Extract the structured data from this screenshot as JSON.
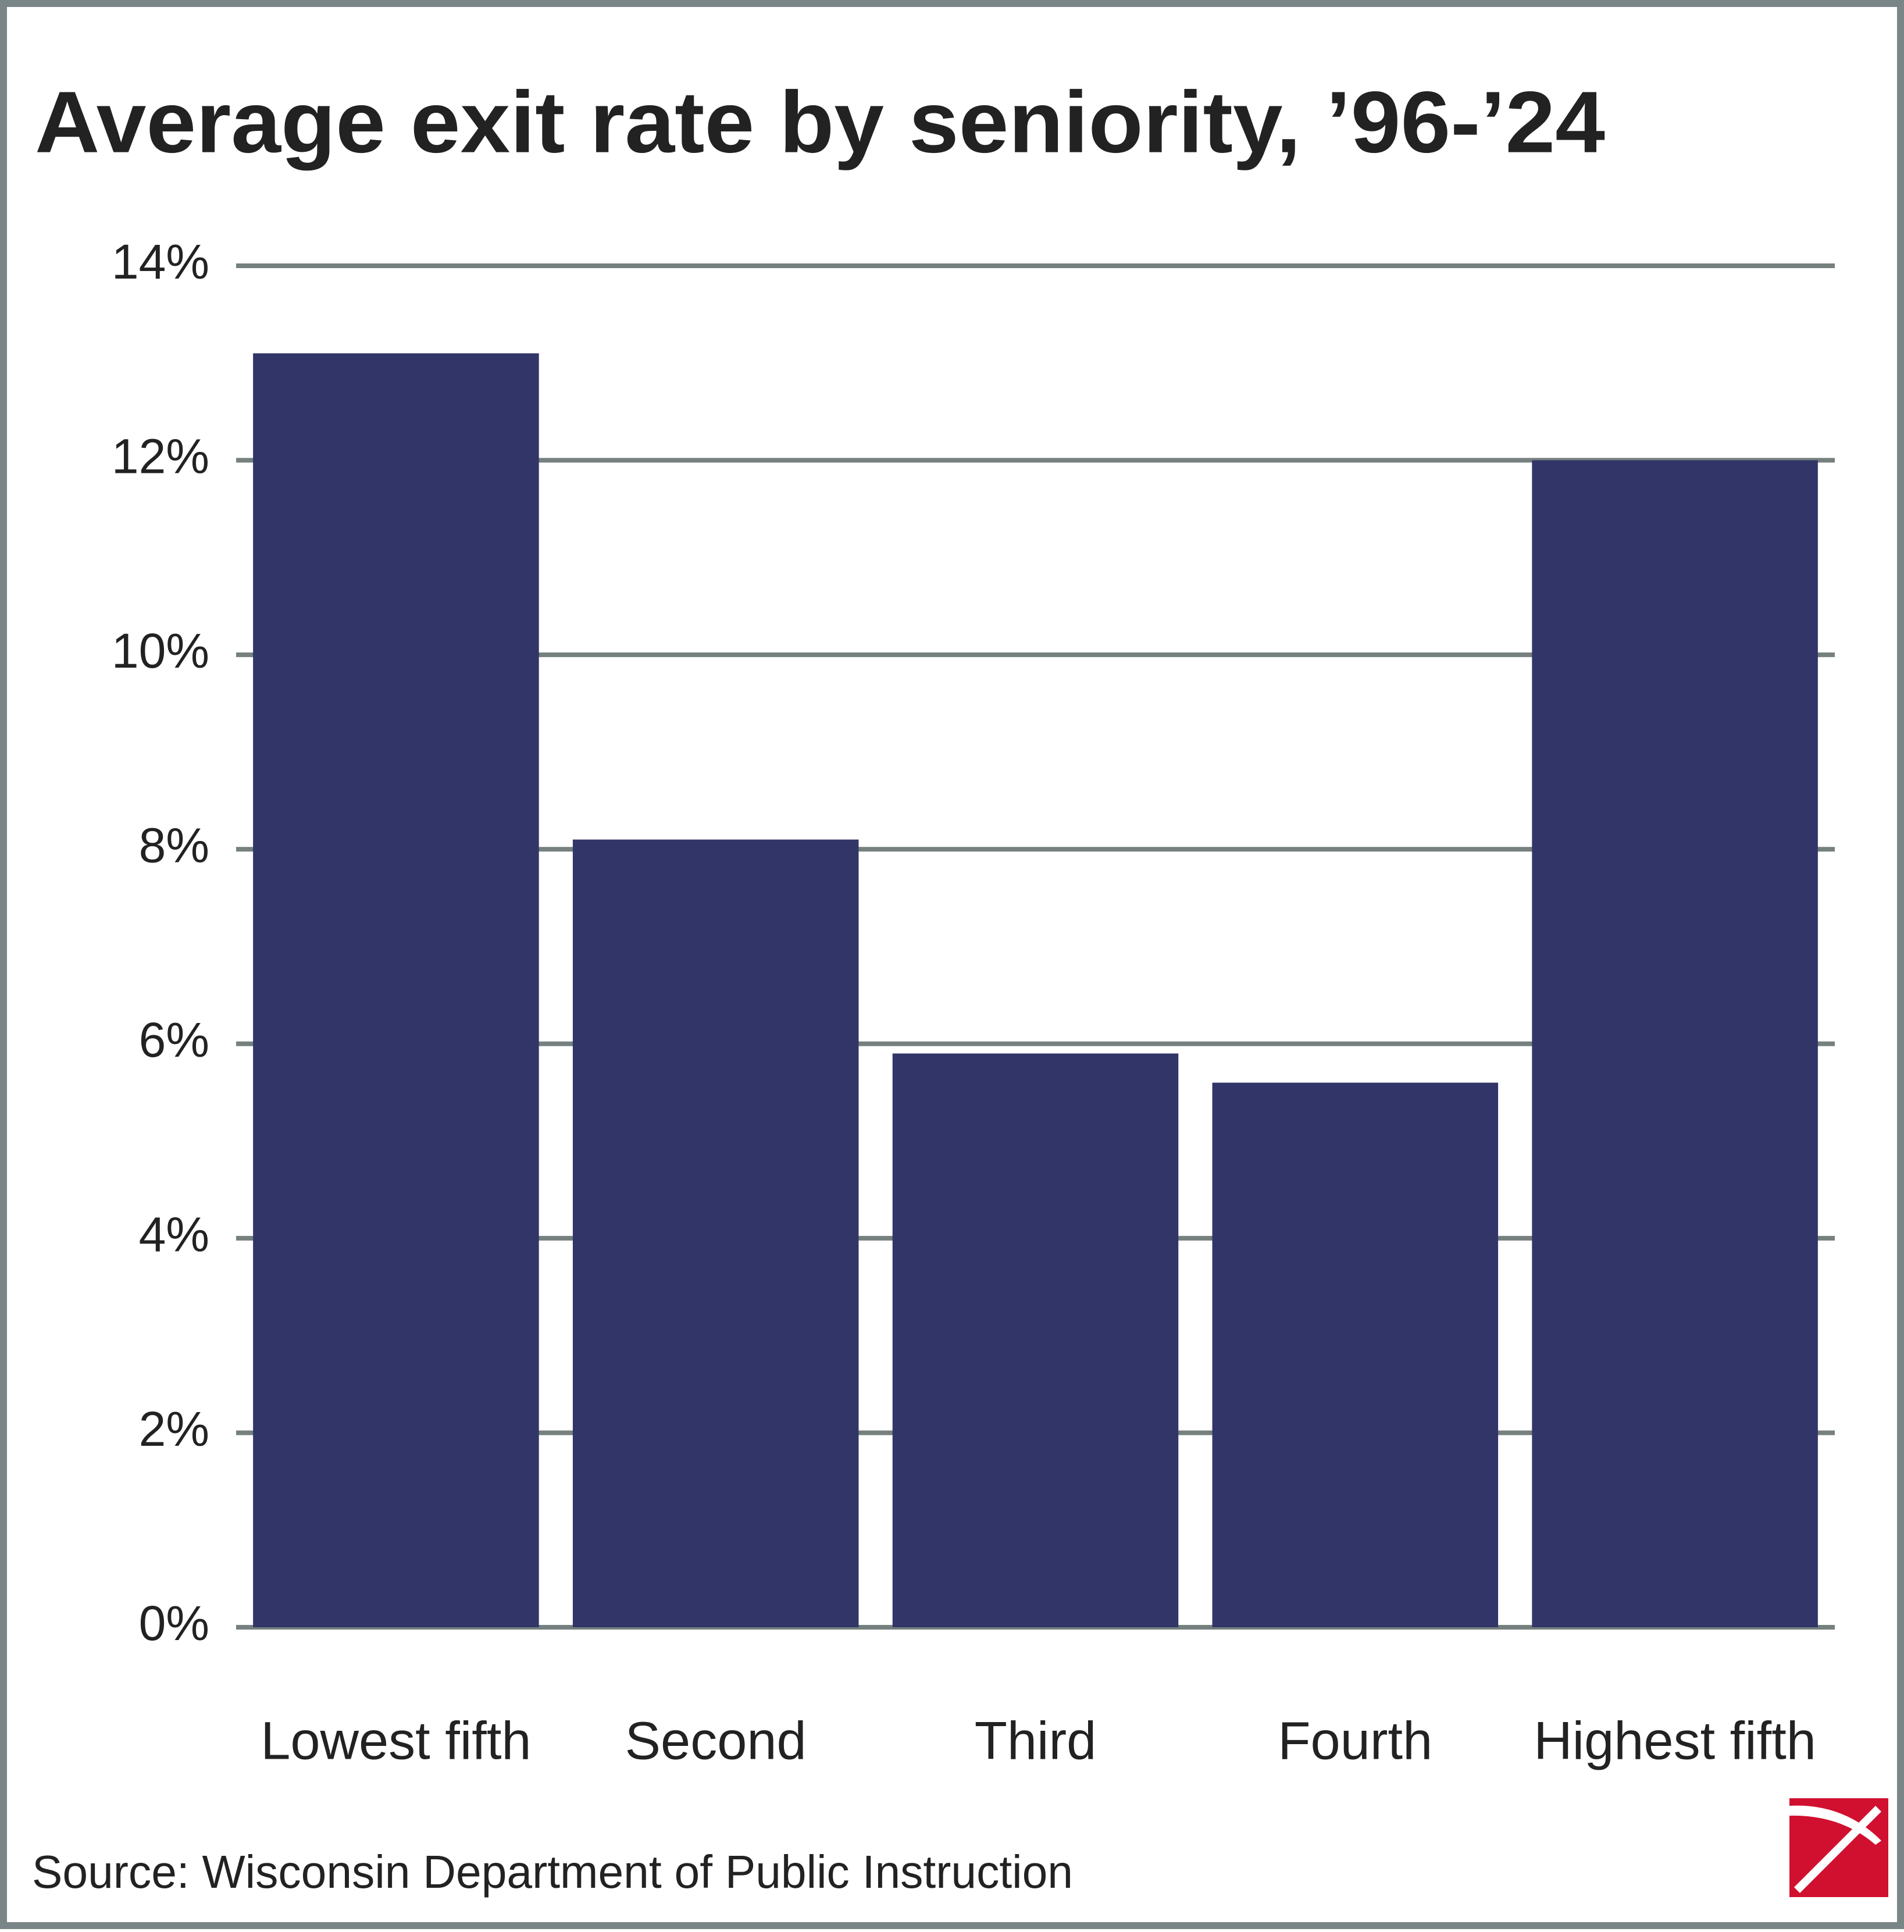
{
  "chart_data": {
    "type": "bar",
    "title": "Average exit rate by seniority, ’96-’24",
    "categories": [
      "Lowest fifth",
      "Second",
      "Third",
      "Fourth",
      "Highest fifth"
    ],
    "values": [
      13.1,
      8.1,
      5.9,
      5.6,
      12.0
    ],
    "color": "#313568",
    "ylim": [
      0,
      14
    ],
    "yticks": [
      {
        "value": 0,
        "label": "0%"
      },
      {
        "value": 2,
        "label": "2%"
      },
      {
        "value": 4,
        "label": "4%"
      },
      {
        "value": 6,
        "label": "6%"
      },
      {
        "value": 8,
        "label": "8%"
      },
      {
        "value": 10,
        "label": "10%"
      },
      {
        "value": 12,
        "label": "12%"
      },
      {
        "value": 14,
        "label": "14%"
      }
    ],
    "grid": true,
    "source": "Source: Wisconsin Department of Public Instruction"
  }
}
